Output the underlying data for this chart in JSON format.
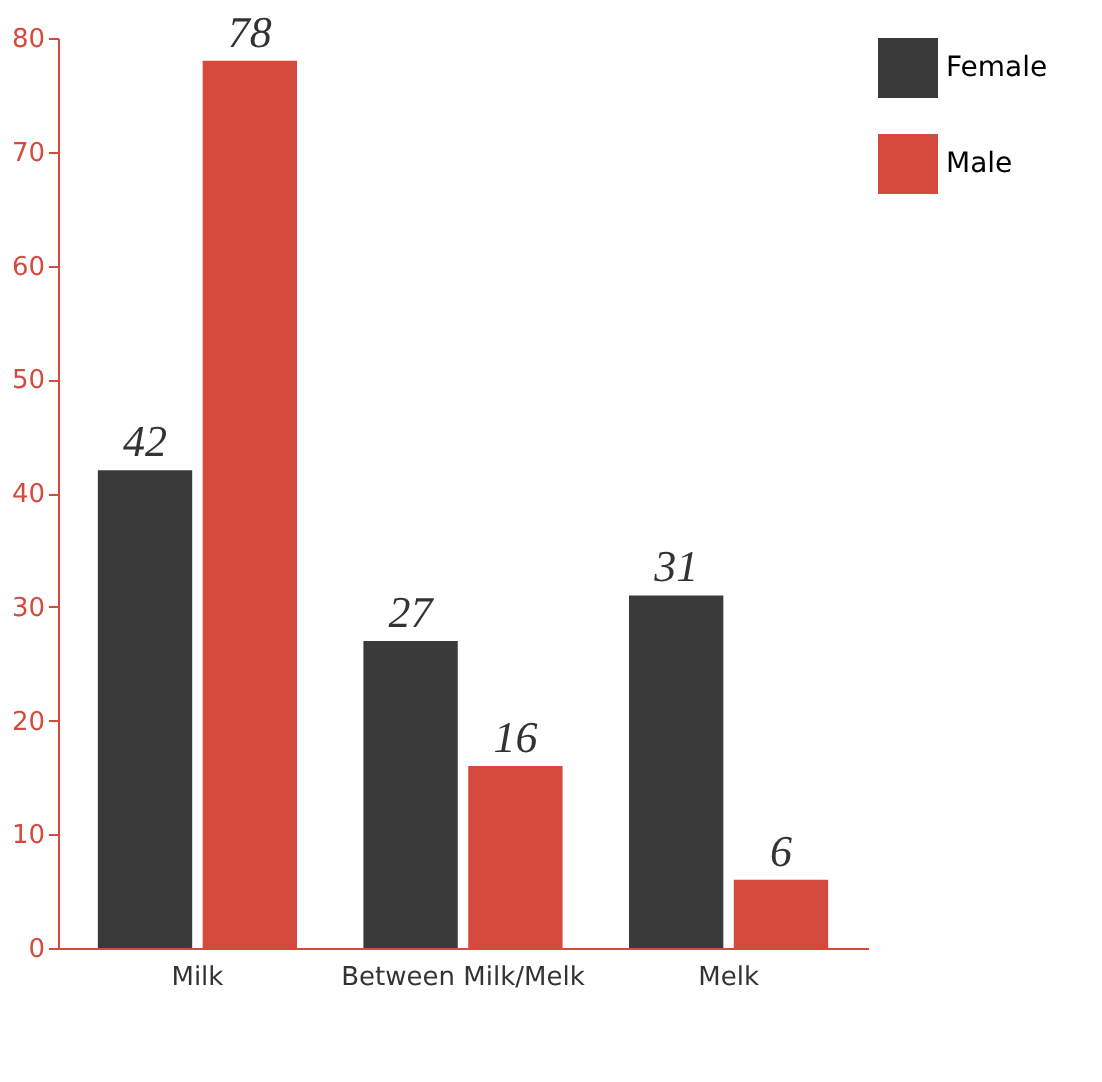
{
  "chart_data": {
    "type": "bar",
    "categories": [
      "Milk",
      "Between Milk/Melk",
      "Melk"
    ],
    "series": [
      {
        "name": "Female",
        "color": "#3a3a3a",
        "values": [
          42,
          27,
          31
        ]
      },
      {
        "name": "Male",
        "color": "#d44a3c",
        "values": [
          78,
          16,
          6
        ]
      }
    ],
    "ylim": [
      0,
      80
    ],
    "yticks": [
      0,
      10,
      20,
      30,
      40,
      50,
      60,
      70,
      80
    ],
    "data_labels": true,
    "grid": false,
    "legend": "top right"
  }
}
